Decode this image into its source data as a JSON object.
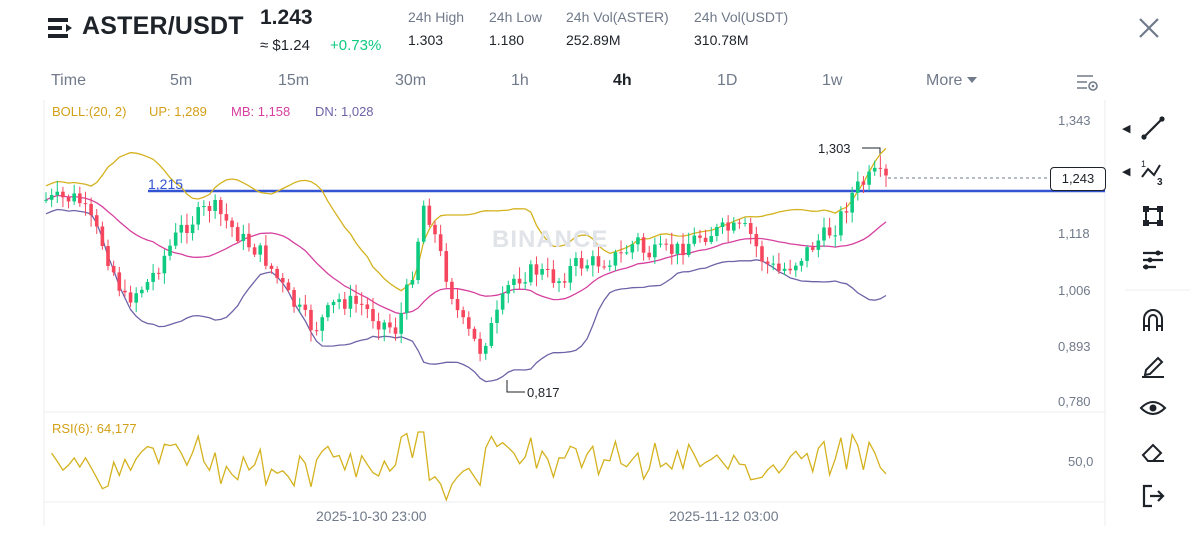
{
  "header": {
    "pair": "ASTER/USDT",
    "price": "1.243",
    "usd_price": "≈ $1.24",
    "change": "+0.73%",
    "stats": [
      {
        "label": "24h High",
        "value": "1.303"
      },
      {
        "label": "24h Low",
        "value": "1.180"
      },
      {
        "label": "24h Vol(ASTER)",
        "value": "252.89M"
      },
      {
        "label": "24h Vol(USDT)",
        "value": "310.78M"
      }
    ]
  },
  "timeframes": [
    "Time",
    "5m",
    "15m",
    "30m",
    "1h",
    "4h",
    "1D",
    "1w"
  ],
  "active_timeframe": "4h",
  "more_label": "More",
  "indicators": {
    "boll_params": "BOLL:(20, 2)",
    "boll_up": "UP: 1,289",
    "boll_mb": "MB: 1,158",
    "boll_dn": "DN: 1,028",
    "rsi": "RSI(6): 64,177"
  },
  "colors": {
    "up": "#0ecb81",
    "down": "#f6465d",
    "boll_up": "#d4b21f",
    "boll_mb": "#d6409f",
    "boll_dn": "#6f63a8",
    "level": "#3253d4",
    "rsi": "#d4b21f"
  },
  "price_axis": [
    "1,343",
    "1,118",
    "1,006",
    "0,893",
    "0,780"
  ],
  "rsi_axis": "50,0",
  "current_price_tag": "1,243",
  "annotations": {
    "high": "1,303",
    "low": "0,817",
    "level": "1,215"
  },
  "watermark": "BINANCE",
  "dates": [
    "2025-10-30 23:00",
    "2025-11-12 03:00"
  ],
  "tools": [
    "trend-line-icon",
    "fibonacci-icon",
    "shape-icon",
    "settings-lines-icon",
    "magnet-icon",
    "pencil-icon",
    "eye-icon",
    "eraser-icon",
    "exit-icon"
  ]
}
